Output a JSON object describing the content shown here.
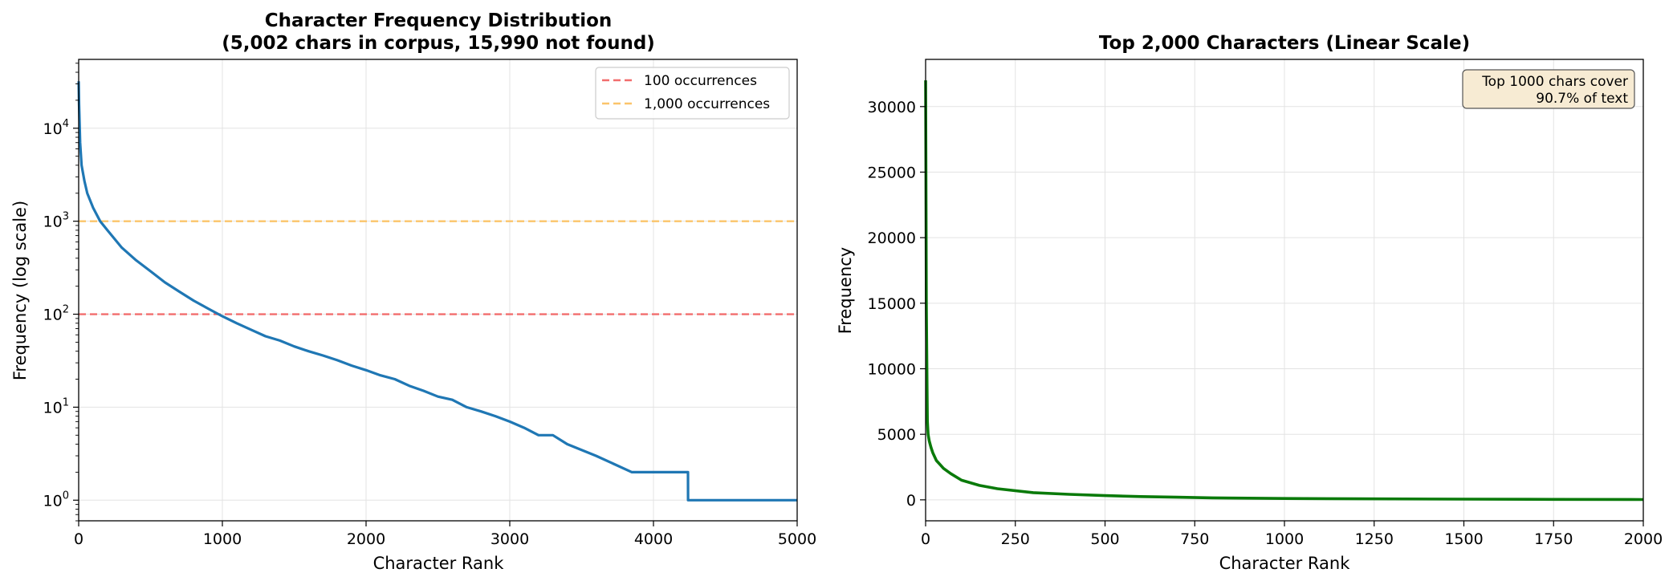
{
  "chart_data": [
    {
      "type": "line",
      "title_line1": "Character Frequency Distribution",
      "title_line2": "(5,002 chars in corpus, 15,990 not found)",
      "xlabel": "Character Rank",
      "ylabel": "Frequency (log scale)",
      "xlim": [
        0,
        5000
      ],
      "ylim": [
        0.6,
        55000
      ],
      "yscale": "log",
      "grid": true,
      "legend_position": "top-right",
      "x_ticks": [
        "0",
        "1000",
        "2000",
        "3000",
        "4000",
        "5000"
      ],
      "y_ticks": [
        {
          "base": "10",
          "exp": "0",
          "value": 1
        },
        {
          "base": "10",
          "exp": "1",
          "value": 10
        },
        {
          "base": "10",
          "exp": "2",
          "value": 100
        },
        {
          "base": "10",
          "exp": "3",
          "value": 1000
        },
        {
          "base": "10",
          "exp": "4",
          "value": 10000
        }
      ],
      "reference_lines": [
        {
          "label": "100 occurrences",
          "value": 100,
          "color": "#f26d6d"
        },
        {
          "label": "1,000 occurrences",
          "value": 1000,
          "color": "#fbc46a"
        }
      ],
      "series": [
        {
          "color": "#1f77b4",
          "x": [
            0,
            3,
            10,
            20,
            40,
            60,
            100,
            150,
            200,
            300,
            400,
            500,
            600,
            700,
            800,
            900,
            1000,
            1100,
            1200,
            1300,
            1400,
            1500,
            1600,
            1700,
            1800,
            1900,
            2000,
            2100,
            2200,
            2300,
            2400,
            2500,
            2600,
            2700,
            2800,
            2900,
            3000,
            3100,
            3200,
            3300,
            3400,
            3600,
            3850,
            4240,
            4241,
            5000
          ],
          "y": [
            32000,
            18000,
            7000,
            4000,
            2700,
            2000,
            1400,
            1000,
            800,
            520,
            380,
            290,
            220,
            175,
            140,
            115,
            95,
            80,
            68,
            58,
            52,
            45,
            40,
            36,
            32,
            28,
            25,
            22,
            20,
            17,
            15,
            13,
            12,
            10,
            9,
            8,
            7,
            6,
            5,
            5,
            4,
            3,
            2,
            2,
            1,
            1
          ]
        }
      ]
    },
    {
      "type": "line",
      "title": "Top 2,000 Characters (Linear Scale)",
      "xlabel": "Character Rank",
      "ylabel": "Frequency",
      "xlim": [
        0,
        2000
      ],
      "ylim": [
        -1600,
        33600
      ],
      "grid": true,
      "x_ticks": [
        "0",
        "250",
        "500",
        "750",
        "1000",
        "1250",
        "1500",
        "1750",
        "2000"
      ],
      "y_ticks": [
        "0",
        "5000",
        "10000",
        "15000",
        "20000",
        "25000",
        "30000"
      ],
      "annotation": {
        "line1": "Top 1000 chars cover",
        "line2": "90.7% of text",
        "position": "top-right",
        "background": "#f7ebd3"
      },
      "series": [
        {
          "color": "#0a7a0a",
          "x": [
            0,
            1,
            2,
            3,
            4,
            5,
            7,
            10,
            15,
            20,
            30,
            40,
            50,
            70,
            100,
            150,
            200,
            300,
            400,
            500,
            600,
            700,
            800,
            1000,
            1200,
            1500,
            1750,
            2000
          ],
          "y": [
            32000,
            25000,
            15000,
            12000,
            8500,
            6000,
            5000,
            4500,
            4000,
            3600,
            3000,
            2700,
            2400,
            2000,
            1500,
            1100,
            850,
            550,
            420,
            320,
            250,
            200,
            150,
            100,
            80,
            50,
            35,
            20
          ]
        }
      ]
    }
  ]
}
